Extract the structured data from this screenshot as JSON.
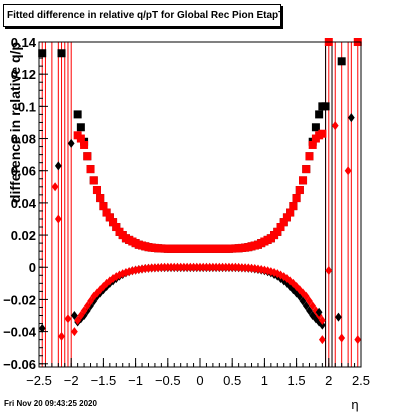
{
  "title": "Fitted difference in relative q/pT for Global Rec Pion EtapT",
  "ylabel": "difference in relative q/p",
  "xlabel": "η",
  "timestamp": "Fri Nov 20 09:43:25 2020",
  "chart_data": {
    "type": "scatter",
    "title": "Fitted difference in relative q/pT for Global Rec Pion EtapT",
    "xlabel": "η",
    "ylabel": "difference in relative q/p",
    "xlim": [
      -2.5,
      2.5
    ],
    "ylim": [
      -0.062,
      0.14
    ],
    "xticks": [
      -2.5,
      -2,
      -1.5,
      -1,
      -0.5,
      0,
      0.5,
      1,
      1.5,
      2,
      2.5
    ],
    "xtick_labels": [
      "−2.5",
      "−2",
      "−1.5",
      "−1",
      "−0.5",
      "0",
      "0.5",
      "1",
      "1.5",
      "2",
      "2.5"
    ],
    "yticks": [
      -0.06,
      -0.04,
      -0.02,
      0,
      0.02,
      0.04,
      0.06,
      0.08,
      0.1,
      0.12,
      0.14
    ],
    "ytick_labels": [
      "−0.06",
      "−0.04",
      "−0.02",
      "0",
      "0.02",
      "0.04",
      "0.06",
      "0.08",
      "0.1",
      "0.12",
      "0.14"
    ],
    "grid": false,
    "legend": "none",
    "series": [
      {
        "color": "#000000",
        "marker": "square",
        "x": [
          -1.9,
          -1.85,
          -1.8,
          -1.75,
          -1.7,
          -1.65,
          -1.6,
          -1.55,
          -1.5,
          -1.45,
          -1.4,
          -1.35,
          -1.3,
          -1.25,
          -1.2,
          -1.15,
          -1.1,
          -1.05,
          -1.0,
          -0.95,
          -0.9,
          -0.85,
          -0.8,
          -0.75,
          -0.7,
          -0.65,
          -0.6,
          -0.55,
          -0.5,
          -0.45,
          -0.4,
          -0.35,
          -0.3,
          -0.25,
          -0.2,
          -0.15,
          -0.1,
          -0.05,
          0.0,
          0.05,
          0.1,
          0.15,
          0.2,
          0.25,
          0.3,
          0.35,
          0.4,
          0.45,
          0.5,
          0.55,
          0.6,
          0.65,
          0.7,
          0.75,
          0.8,
          0.85,
          0.9,
          0.95,
          1.0,
          1.05,
          1.1,
          1.15,
          1.2,
          1.25,
          1.3,
          1.35,
          1.4,
          1.45,
          1.5,
          1.55,
          1.6,
          1.65,
          1.7,
          1.75,
          1.8,
          1.85,
          1.9
        ],
        "y": [
          0.095,
          0.087,
          0.078,
          0.069,
          0.061,
          0.054,
          0.048,
          0.043,
          0.038,
          0.034,
          0.031,
          0.028,
          0.025,
          0.022,
          0.02,
          0.018,
          0.017,
          0.016,
          0.015,
          0.014,
          0.0135,
          0.013,
          0.0125,
          0.0122,
          0.012,
          0.0118,
          0.0117,
          0.0116,
          0.0115,
          0.0115,
          0.0115,
          0.0115,
          0.0115,
          0.0115,
          0.0115,
          0.0115,
          0.0115,
          0.0115,
          0.0115,
          0.0115,
          0.0115,
          0.0115,
          0.0115,
          0.0115,
          0.0115,
          0.0115,
          0.0115,
          0.0115,
          0.0116,
          0.0117,
          0.0118,
          0.012,
          0.0122,
          0.0125,
          0.013,
          0.0135,
          0.014,
          0.015,
          0.016,
          0.017,
          0.018,
          0.02,
          0.022,
          0.025,
          0.028,
          0.031,
          0.034,
          0.038,
          0.043,
          0.048,
          0.054,
          0.061,
          0.069,
          0.078,
          0.087,
          0.095,
          0.1
        ]
      },
      {
        "color": "#ff0000",
        "marker": "square",
        "x": [
          -1.9,
          -1.85,
          -1.8,
          -1.75,
          -1.7,
          -1.65,
          -1.6,
          -1.55,
          -1.5,
          -1.45,
          -1.4,
          -1.35,
          -1.3,
          -1.25,
          -1.2,
          -1.15,
          -1.1,
          -1.05,
          -1.0,
          -0.95,
          -0.9,
          -0.85,
          -0.8,
          -0.75,
          -0.7,
          -0.65,
          -0.6,
          -0.55,
          -0.5,
          -0.45,
          -0.4,
          -0.35,
          -0.3,
          -0.25,
          -0.2,
          -0.15,
          -0.1,
          -0.05,
          0.0,
          0.05,
          0.1,
          0.15,
          0.2,
          0.25,
          0.3,
          0.35,
          0.4,
          0.45,
          0.5,
          0.55,
          0.6,
          0.65,
          0.7,
          0.75,
          0.8,
          0.85,
          0.9,
          0.95,
          1.0,
          1.05,
          1.1,
          1.15,
          1.2,
          1.25,
          1.3,
          1.35,
          1.4,
          1.45,
          1.5,
          1.55,
          1.6,
          1.65,
          1.7,
          1.75,
          1.8,
          1.85,
          1.9
        ],
        "y": [
          0.082,
          0.08,
          0.076,
          0.069,
          0.061,
          0.054,
          0.048,
          0.043,
          0.038,
          0.034,
          0.031,
          0.028,
          0.025,
          0.022,
          0.02,
          0.018,
          0.017,
          0.016,
          0.015,
          0.014,
          0.0135,
          0.013,
          0.0125,
          0.0122,
          0.012,
          0.0118,
          0.0117,
          0.0116,
          0.0115,
          0.0115,
          0.0115,
          0.0115,
          0.0115,
          0.0115,
          0.0115,
          0.0115,
          0.0115,
          0.0115,
          0.0115,
          0.0115,
          0.0115,
          0.0115,
          0.0115,
          0.0115,
          0.0115,
          0.0115,
          0.0115,
          0.0115,
          0.0116,
          0.0117,
          0.0118,
          0.012,
          0.0122,
          0.0125,
          0.013,
          0.0135,
          0.014,
          0.015,
          0.016,
          0.017,
          0.018,
          0.02,
          0.022,
          0.025,
          0.028,
          0.031,
          0.034,
          0.038,
          0.043,
          0.048,
          0.054,
          0.061,
          0.069,
          0.076,
          0.08,
          0.082,
          0.083
        ]
      },
      {
        "color": "#000000",
        "marker": "diamond",
        "x": [
          -1.9,
          -1.85,
          -1.8,
          -1.75,
          -1.7,
          -1.65,
          -1.6,
          -1.55,
          -1.5,
          -1.45,
          -1.4,
          -1.35,
          -1.3,
          -1.25,
          -1.2,
          -1.15,
          -1.1,
          -1.05,
          -1.0,
          -0.95,
          -0.9,
          -0.85,
          -0.8,
          -0.75,
          -0.7,
          -0.65,
          -0.6,
          -0.55,
          -0.5,
          -0.45,
          -0.4,
          -0.35,
          -0.3,
          -0.25,
          -0.2,
          -0.15,
          -0.1,
          -0.05,
          0.0,
          0.05,
          0.1,
          0.15,
          0.2,
          0.25,
          0.3,
          0.35,
          0.4,
          0.45,
          0.5,
          0.55,
          0.6,
          0.65,
          0.7,
          0.75,
          0.8,
          0.85,
          0.9,
          0.95,
          1.0,
          1.05,
          1.1,
          1.15,
          1.2,
          1.25,
          1.3,
          1.35,
          1.4,
          1.45,
          1.5,
          1.55,
          1.6,
          1.65,
          1.7,
          1.75,
          1.8,
          1.85,
          1.9
        ],
        "y": [
          -0.034,
          -0.032,
          -0.03,
          -0.027,
          -0.024,
          -0.021,
          -0.018,
          -0.016,
          -0.014,
          -0.012,
          -0.01,
          -0.0085,
          -0.007,
          -0.0055,
          -0.0045,
          -0.0035,
          -0.0028,
          -0.0022,
          -0.0018,
          -0.0014,
          -0.0011,
          -0.0008,
          -0.0006,
          -0.0005,
          -0.0004,
          -0.0003,
          -0.0002,
          -0.0002,
          -0.0002,
          -0.0002,
          -0.0002,
          -0.0002,
          -0.0002,
          -0.0002,
          -0.0002,
          -0.0002,
          -0.0002,
          -0.0002,
          -0.0002,
          -0.0002,
          -0.0002,
          -0.0002,
          -0.0002,
          -0.0002,
          -0.0002,
          -0.0002,
          -0.0002,
          -0.0002,
          -0.0002,
          -0.0002,
          -0.0003,
          -0.0004,
          -0.0005,
          -0.0006,
          -0.0008,
          -0.0011,
          -0.0014,
          -0.0018,
          -0.0022,
          -0.0028,
          -0.0035,
          -0.0045,
          -0.0055,
          -0.007,
          -0.0085,
          -0.01,
          -0.012,
          -0.014,
          -0.016,
          -0.018,
          -0.021,
          -0.024,
          -0.027,
          -0.03,
          -0.032,
          -0.034,
          -0.036
        ]
      },
      {
        "color": "#ff0000",
        "marker": "diamond",
        "x": [
          -1.9,
          -1.85,
          -1.8,
          -1.75,
          -1.7,
          -1.65,
          -1.6,
          -1.55,
          -1.5,
          -1.45,
          -1.4,
          -1.35,
          -1.3,
          -1.25,
          -1.2,
          -1.15,
          -1.1,
          -1.05,
          -1.0,
          -0.95,
          -0.9,
          -0.85,
          -0.8,
          -0.75,
          -0.7,
          -0.65,
          -0.6,
          -0.55,
          -0.5,
          -0.45,
          -0.4,
          -0.35,
          -0.3,
          -0.25,
          -0.2,
          -0.15,
          -0.1,
          -0.05,
          0.0,
          0.05,
          0.1,
          0.15,
          0.2,
          0.25,
          0.3,
          0.35,
          0.4,
          0.45,
          0.5,
          0.55,
          0.6,
          0.65,
          0.7,
          0.75,
          0.8,
          0.85,
          0.9,
          0.95,
          1.0,
          1.05,
          1.1,
          1.15,
          1.2,
          1.25,
          1.3,
          1.35,
          1.4,
          1.45,
          1.5,
          1.55,
          1.6,
          1.65,
          1.7,
          1.75,
          1.8,
          1.85,
          1.9
        ],
        "y": [
          -0.033,
          -0.03,
          -0.027,
          -0.024,
          -0.021,
          -0.018,
          -0.016,
          -0.014,
          -0.012,
          -0.01,
          -0.0085,
          -0.007,
          -0.0058,
          -0.0048,
          -0.004,
          -0.0033,
          -0.0027,
          -0.0022,
          -0.0018,
          -0.0014,
          -0.0011,
          -0.0008,
          -0.0006,
          -0.0004,
          -0.0003,
          -0.0002,
          -0.0001,
          0.0,
          0.0,
          0.0,
          0.0,
          0.0,
          0.0,
          0.0,
          0.0,
          0.0,
          0.0,
          0.0,
          0.0,
          0.0,
          0.0,
          0.0,
          0.0,
          0.0,
          0.0,
          0.0,
          0.0,
          0.0,
          0.0,
          0.0,
          -0.0001,
          -0.0002,
          -0.0003,
          -0.0004,
          -0.0006,
          -0.0008,
          -0.0011,
          -0.0014,
          -0.0018,
          -0.0022,
          -0.0027,
          -0.0033,
          -0.004,
          -0.0048,
          -0.0058,
          -0.007,
          -0.0085,
          -0.01,
          -0.012,
          -0.014,
          -0.016,
          -0.018,
          -0.021,
          -0.024,
          -0.027,
          -0.03,
          -0.033
        ]
      },
      {
        "color": "#000000",
        "marker": "square",
        "x": [
          -2.45,
          -2.15,
          1.95,
          2.2
        ],
        "y": [
          0.133,
          0.133,
          0.1,
          0.128
        ]
      },
      {
        "color": "#ff0000",
        "marker": "square",
        "x": [
          2.0,
          2.45
        ],
        "y": [
          0.14,
          0.14
        ]
      },
      {
        "color": "#000000",
        "marker": "diamond",
        "x": [
          -2.45,
          -2.2,
          -2.0,
          -1.95,
          1.85,
          2.15,
          2.35
        ],
        "y": [
          -0.038,
          0.063,
          0.077,
          -0.03,
          -0.028,
          -0.031,
          0.093
        ]
      },
      {
        "color": "#ff0000",
        "marker": "diamond",
        "x": [
          -2.25,
          -2.2,
          -2.15,
          -2.05,
          -1.95,
          1.9,
          2.0,
          2.1,
          2.2,
          2.3,
          2.45
        ],
        "y": [
          0.05,
          0.03,
          -0.043,
          -0.032,
          -0.04,
          -0.045,
          -0.002,
          0.088,
          -0.044,
          0.06,
          -0.045
        ]
      }
    ],
    "vertical_error_bars_x": [
      -2.45,
      -2.4,
      -2.3,
      -2.2,
      -2.15,
      -2.1,
      -2.05,
      -2.0,
      1.95,
      2.0,
      2.05,
      2.1,
      2.2,
      2.3,
      2.35,
      2.45
    ]
  }
}
